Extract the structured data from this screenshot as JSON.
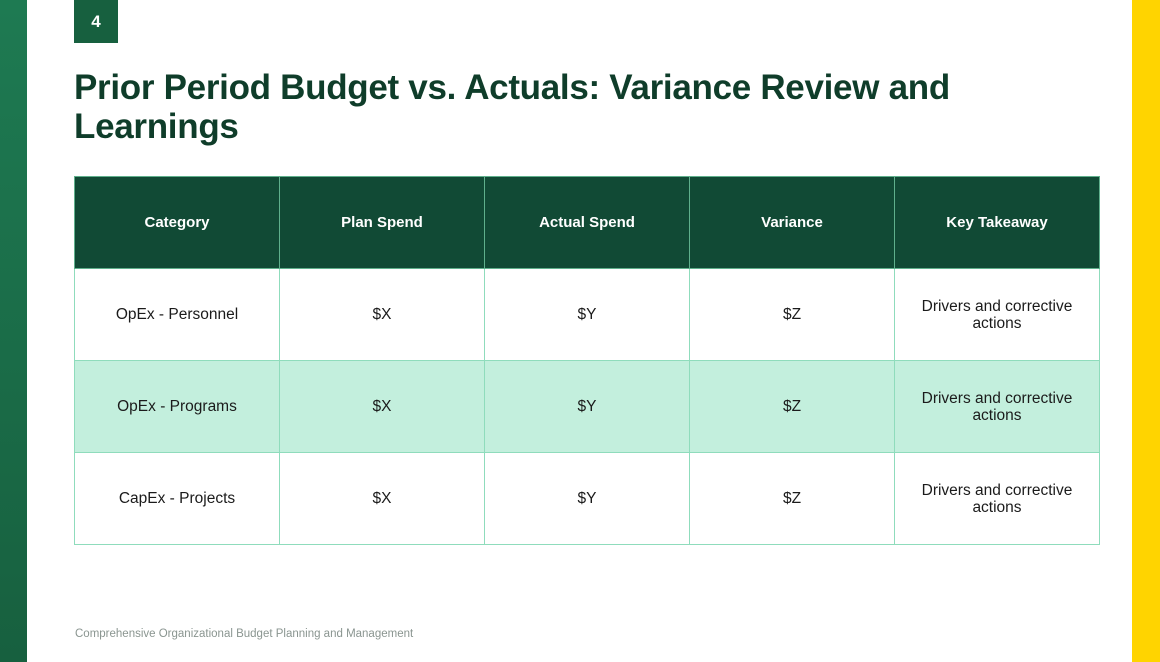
{
  "slide": {
    "page_number": "4",
    "title": "Prior Period Budget vs. Actuals: Variance Review and Learnings",
    "footer": "Comprehensive Organizational Budget Planning and Management"
  },
  "table": {
    "headers": [
      "Category",
      "Plan Spend",
      "Actual Spend",
      "Variance",
      "Key Takeaway"
    ],
    "rows": [
      [
        "OpEx - Personnel",
        "$X",
        "$Y",
        "$Z",
        "Drivers and corrective actions"
      ],
      [
        "OpEx - Programs",
        "$X",
        "$Y",
        "$Z",
        "Drivers and corrective actions"
      ],
      [
        "CapEx - Projects",
        "$X",
        "$Y",
        "$Z",
        "Drivers and corrective actions"
      ]
    ]
  },
  "colors": {
    "header_bg": "#114a35",
    "alt_row_bg": "#c3efdd",
    "left_accent": "#1e7a52",
    "right_accent": "#ffd400",
    "title_text": "#0f3d2a"
  }
}
